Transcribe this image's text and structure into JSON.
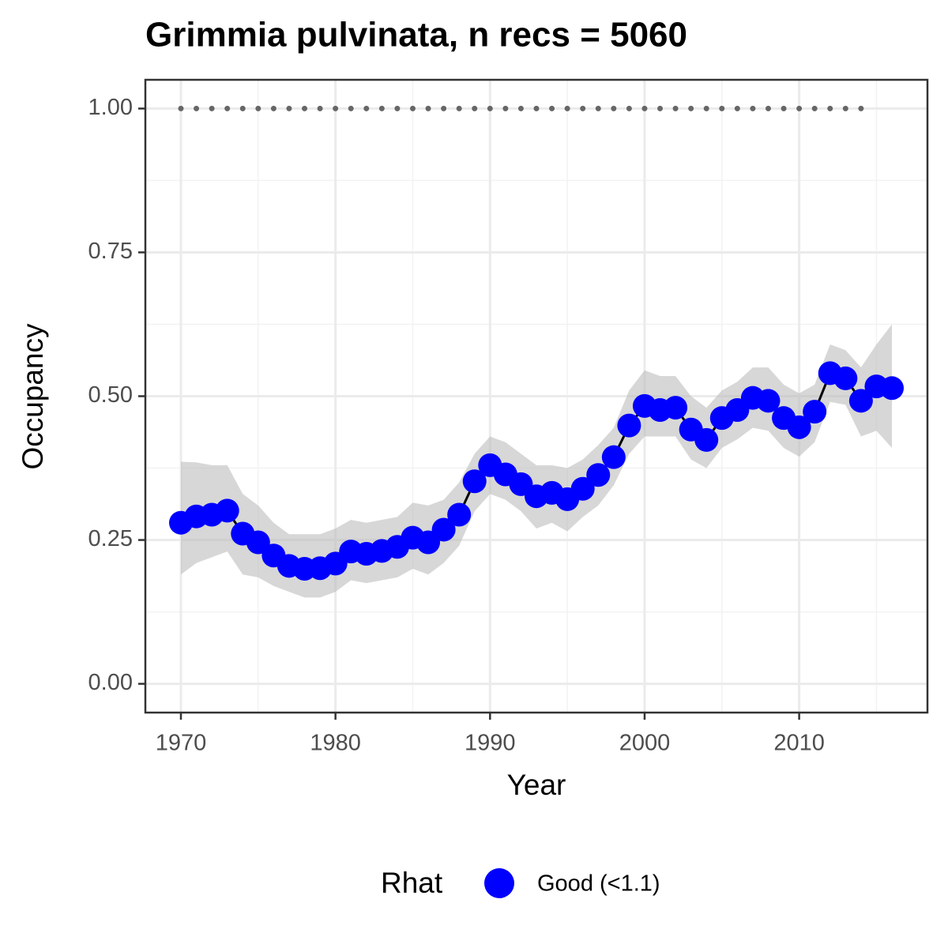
{
  "chart_data": {
    "type": "line",
    "title": "Grimmia pulvinata, n recs = 5060",
    "xlabel": "Year",
    "ylabel": "Occupancy",
    "legend_title": "Rhat",
    "legend_position": "bottom",
    "x": [
      1970,
      1971,
      1972,
      1973,
      1974,
      1975,
      1976,
      1977,
      1978,
      1979,
      1980,
      1981,
      1982,
      1983,
      1984,
      1985,
      1986,
      1987,
      1988,
      1989,
      1990,
      1991,
      1992,
      1993,
      1994,
      1995,
      1996,
      1997,
      1998,
      1999,
      2000,
      2001,
      2002,
      2003,
      2004,
      2005,
      2006,
      2007,
      2008,
      2009,
      2010,
      2011,
      2012,
      2013,
      2014,
      2015,
      2016
    ],
    "series": [
      {
        "name": "Good (<1.1)",
        "color": "#0000ff",
        "line_color": "#000000",
        "band_color": "#bdbdbd",
        "values": [
          0.28,
          0.291,
          0.294,
          0.301,
          0.261,
          0.246,
          0.223,
          0.205,
          0.2,
          0.201,
          0.209,
          0.23,
          0.226,
          0.231,
          0.238,
          0.254,
          0.246,
          0.268,
          0.294,
          0.352,
          0.38,
          0.364,
          0.347,
          0.326,
          0.332,
          0.321,
          0.339,
          0.363,
          0.394,
          0.449,
          0.483,
          0.476,
          0.48,
          0.442,
          0.424,
          0.462,
          0.476,
          0.497,
          0.492,
          0.462,
          0.446,
          0.473,
          0.54,
          0.531,
          0.492,
          0.517,
          0.514
        ],
        "lower": [
          0.19,
          0.21,
          0.22,
          0.23,
          0.19,
          0.185,
          0.17,
          0.16,
          0.15,
          0.15,
          0.16,
          0.18,
          0.175,
          0.18,
          0.185,
          0.2,
          0.19,
          0.21,
          0.24,
          0.3,
          0.33,
          0.32,
          0.3,
          0.27,
          0.28,
          0.265,
          0.29,
          0.31,
          0.345,
          0.4,
          0.43,
          0.43,
          0.43,
          0.39,
          0.375,
          0.41,
          0.425,
          0.445,
          0.44,
          0.41,
          0.395,
          0.42,
          0.49,
          0.485,
          0.43,
          0.44,
          0.41
        ],
        "upper": [
          0.386,
          0.385,
          0.38,
          0.38,
          0.33,
          0.31,
          0.28,
          0.26,
          0.26,
          0.26,
          0.27,
          0.285,
          0.28,
          0.285,
          0.29,
          0.315,
          0.31,
          0.32,
          0.35,
          0.4,
          0.43,
          0.42,
          0.4,
          0.38,
          0.38,
          0.375,
          0.39,
          0.415,
          0.445,
          0.51,
          0.545,
          0.535,
          0.535,
          0.5,
          0.48,
          0.51,
          0.525,
          0.55,
          0.55,
          0.52,
          0.505,
          0.52,
          0.59,
          0.58,
          0.55,
          0.59,
          0.625
        ]
      }
    ],
    "reference": {
      "y": 1,
      "x": [
        1970,
        2015
      ],
      "color": "#666666"
    },
    "xlim": [
      1967.7,
      2018.3
    ],
    "ylim": [
      -0.05,
      1.05
    ],
    "xticks": [
      1970,
      1980,
      1990,
      2000,
      2010
    ],
    "xticks_minor": [
      1975,
      1985,
      1995,
      2005,
      2015
    ],
    "yticks": [
      {
        "value": 0,
        "label": "0.00"
      },
      0.25,
      {
        "value": 0.5,
        "label": "0.50"
      },
      0.75,
      {
        "value": 1,
        "label": "1.00"
      }
    ],
    "yticks_minor": [
      0.125,
      0.375,
      0.625,
      0.875
    ],
    "grid": true
  }
}
